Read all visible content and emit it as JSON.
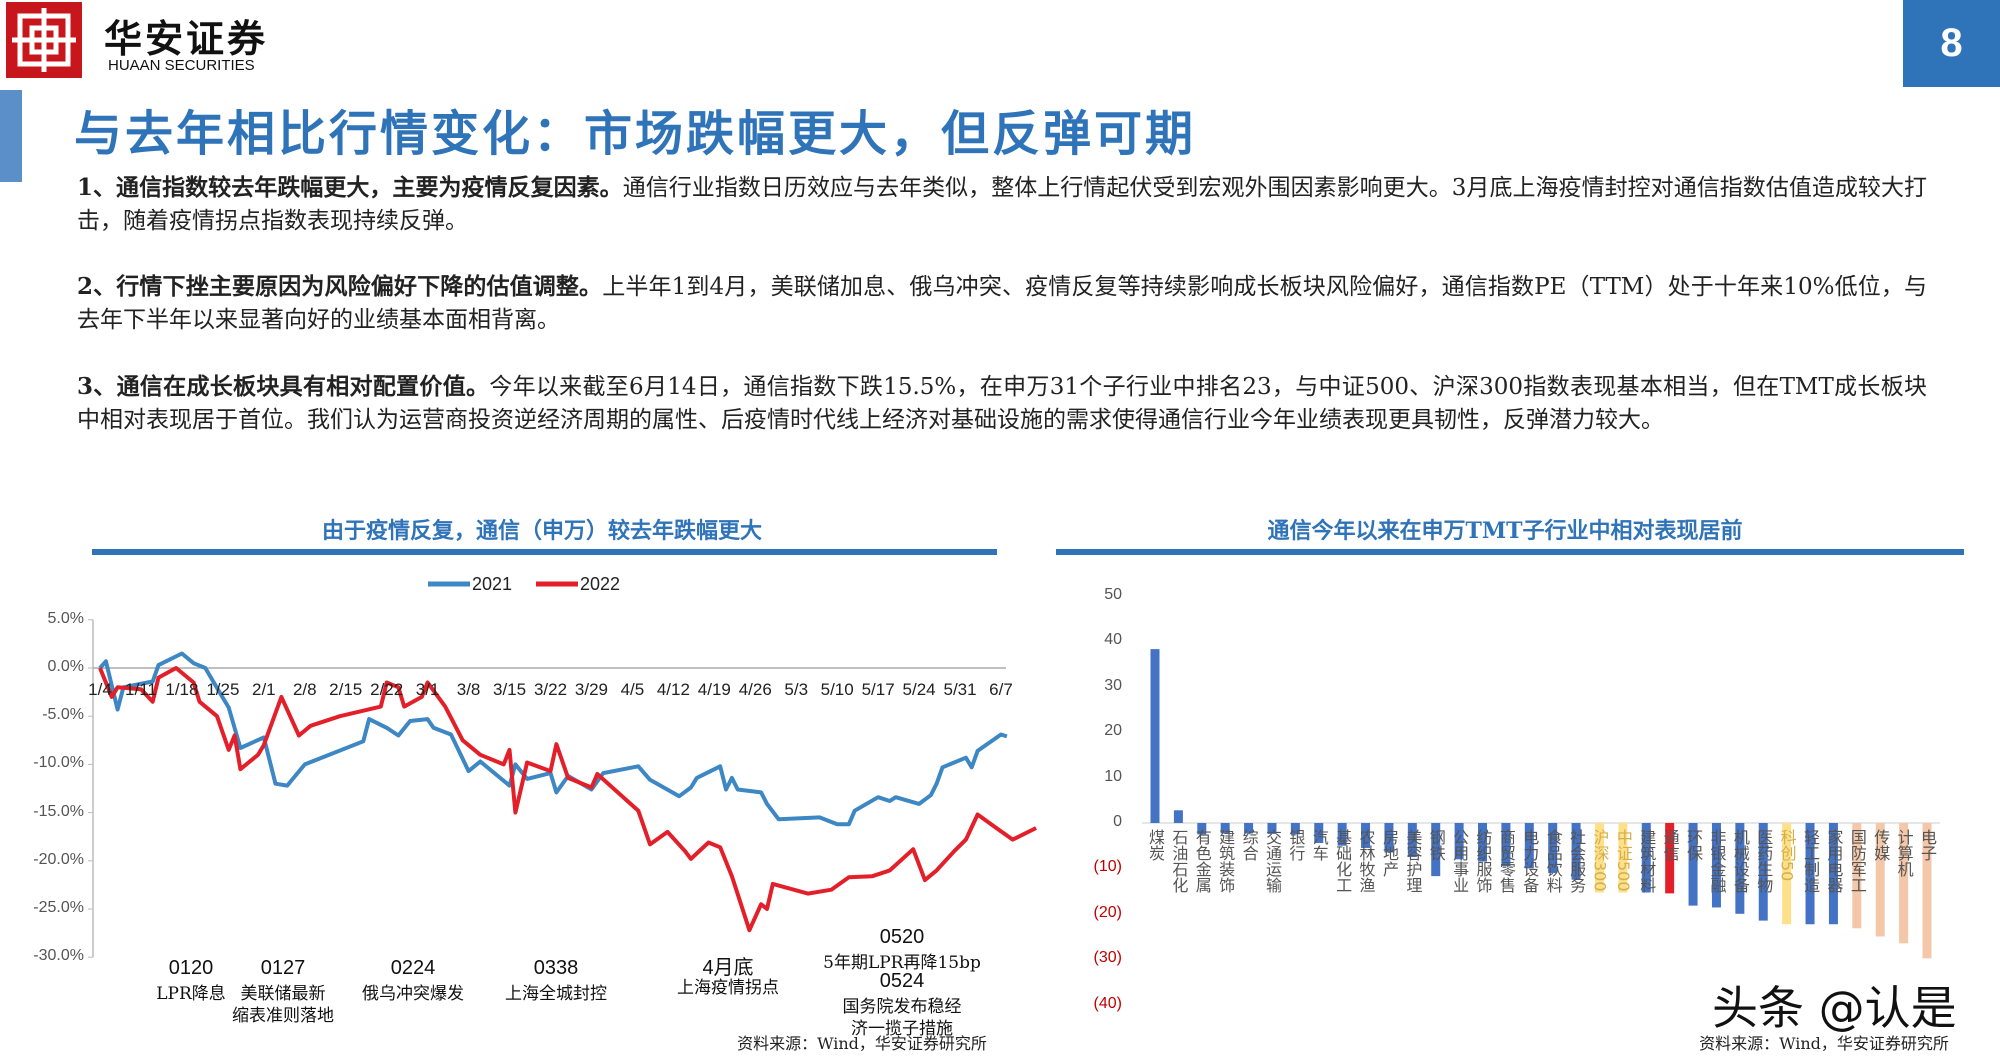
{
  "header": {
    "brand_cn": "华安证券",
    "brand_en": "HUAAN SECURITIES",
    "page_number": "8",
    "title": "与去年相比行情变化：市场跌幅更大，但反弹可期"
  },
  "paragraphs": [
    {
      "bold": "1、通信指数较去年跌幅更大，主要为疫情反复因素。",
      "text": "通信行业指数日历效应与去年类似，整体上行情起伏受到宏观外围因素影响更大。3月底上海疫情封控对通信指数估值造成较大打击，随着疫情拐点指数表现持续反弹。"
    },
    {
      "bold": "2、行情下挫主要原因为风险偏好下降的估值调整。",
      "text": "上半年1到4月，美联储加息、俄乌冲突、疫情反复等持续影响成长板块风险偏好，通信指数PE（TTM）处于十年来10%低位，与去年下半年以来显著向好的业绩基本面相背离。"
    },
    {
      "bold": "3、通信在成长板块具有相对配置价值。",
      "text": "今年以来截至6月14日，通信指数下跌15.5%，在申万31个子行业中排名23，与中证500、沪深300指数表现基本相当，但在TMT成长板块中相对表现居于首位。我们认为运营商投资逆经济周期的属性、后疫情时代线上经济对基础设施的需求使得通信行业今年业绩表现更具韧性，反弹潜力较大。"
    }
  ],
  "chart_data": [
    {
      "type": "line",
      "title": "由于疫情反复，通信（申万）较去年跌幅更大",
      "ylim": [
        -30,
        5
      ],
      "yticks": [
        "5.0%",
        "0.0%",
        "-5.0%",
        "-10.0%",
        "-15.0%",
        "-20.0%",
        "-25.0%",
        "-30.0%"
      ],
      "xticks": [
        "1/4",
        "1/11",
        "1/18",
        "1/25",
        "2/1",
        "2/8",
        "2/15",
        "2/22",
        "3/1",
        "3/8",
        "3/15",
        "3/22",
        "3/29",
        "4/5",
        "4/12",
        "4/19",
        "4/26",
        "5/3",
        "5/10",
        "5/17",
        "5/24",
        "5/31",
        "6/7"
      ],
      "legend_position": "top",
      "series": [
        {
          "name": "2021",
          "color": "#3c87c4",
          "points": [
            [
              "1/4",
              0
            ],
            [
              "1/5",
              0.7
            ],
            [
              "1/7",
              -4.3
            ],
            [
              "1/8",
              -2
            ],
            [
              "1/13",
              -1.4
            ],
            [
              "1/14",
              0.3
            ],
            [
              "1/18",
              1.5
            ],
            [
              "1/20",
              0.5
            ],
            [
              "1/22",
              0
            ],
            [
              "1/25",
              -3.1
            ],
            [
              "1/26",
              -4.1
            ],
            [
              "1/28",
              -8.3
            ],
            [
              "2/1",
              -7.2
            ],
            [
              "2/3",
              -12
            ],
            [
              "2/5",
              -12.2
            ],
            [
              "2/8",
              -10
            ],
            [
              "2/18",
              -7.6
            ],
            [
              "2/19",
              -5.3
            ],
            [
              "2/22",
              -6.2
            ],
            [
              "2/24",
              -7
            ],
            [
              "2/26",
              -5.5
            ],
            [
              "3/1",
              -5.3
            ],
            [
              "3/2",
              -6.2
            ],
            [
              "3/5",
              -6.9
            ],
            [
              "3/8",
              -10.7
            ],
            [
              "3/10",
              -9.7
            ],
            [
              "3/15",
              -12.2
            ],
            [
              "3/16",
              -10
            ],
            [
              "3/18",
              -11.5
            ],
            [
              "3/22",
              -10.9
            ],
            [
              "3/23",
              -12.9
            ],
            [
              "3/25",
              -11.2
            ],
            [
              "3/29",
              -12.6
            ],
            [
              "3/31",
              -10.9
            ],
            [
              "4/6",
              -10.2
            ],
            [
              "4/8",
              -11.6
            ],
            [
              "4/13",
              -13.3
            ],
            [
              "4/15",
              -12.4
            ],
            [
              "4/16",
              -11.4
            ],
            [
              "4/20",
              -10.2
            ],
            [
              "4/21",
              -12.6
            ],
            [
              "4/22",
              -11.4
            ],
            [
              "4/23",
              -12.6
            ],
            [
              "4/27",
              -12.9
            ],
            [
              "4/28",
              -14.1
            ],
            [
              "4/30",
              -15.7
            ],
            [
              "5/7",
              -15.5
            ],
            [
              "5/10",
              -16.2
            ],
            [
              "5/12",
              -16.2
            ],
            [
              "5/13",
              -14.8
            ],
            [
              "5/17",
              -13.4
            ],
            [
              "5/19",
              -13.8
            ],
            [
              "5/20",
              -13.4
            ],
            [
              "5/24",
              -14.1
            ],
            [
              "5/26",
              -13.2
            ],
            [
              "5/27",
              -12
            ],
            [
              "5/28",
              -10.3
            ],
            [
              "6/1",
              -9.3
            ],
            [
              "6/2",
              -10.3
            ],
            [
              "6/3",
              -8.6
            ],
            [
              "6/7",
              -6.9
            ],
            [
              "6/8",
              -7.1
            ]
          ]
        },
        {
          "name": "2022",
          "color": "#e3202a",
          "points": [
            [
              "1/4",
              0
            ],
            [
              "1/6",
              -3
            ],
            [
              "1/7",
              -2
            ],
            [
              "1/11",
              -2.2
            ],
            [
              "1/13",
              -3.5
            ],
            [
              "1/14",
              -1
            ],
            [
              "1/17",
              0
            ],
            [
              "1/20",
              -1.5
            ],
            [
              "1/21",
              -3.5
            ],
            [
              "1/24",
              -5
            ],
            [
              "1/26",
              -8.5
            ],
            [
              "1/27",
              -7
            ],
            [
              "1/28",
              -10.5
            ],
            [
              "1/31",
              -9
            ],
            [
              "2/1",
              -8
            ],
            [
              "2/4",
              -3
            ],
            [
              "2/7",
              -7
            ],
            [
              "2/9",
              -6
            ],
            [
              "2/14",
              -5
            ],
            [
              "2/21",
              -4
            ],
            [
              "2/22",
              -1.5
            ],
            [
              "2/24",
              -2
            ],
            [
              "2/25",
              -4
            ],
            [
              "2/28",
              -3
            ],
            [
              "3/1",
              -1.5
            ],
            [
              "3/4",
              -4
            ],
            [
              "3/7",
              -7.5
            ],
            [
              "3/10",
              -9
            ],
            [
              "3/14",
              -10
            ],
            [
              "3/15",
              -8.5
            ],
            [
              "3/16",
              -15
            ],
            [
              "3/18",
              -9.8
            ],
            [
              "3/22",
              -10.7
            ],
            [
              "3/23",
              -7.9
            ],
            [
              "3/25",
              -11.4
            ],
            [
              "3/29",
              -12.4
            ],
            [
              "3/30",
              -11
            ],
            [
              "4/6",
              -14.8
            ],
            [
              "4/8",
              -18.3
            ],
            [
              "4/11",
              -17
            ],
            [
              "4/14",
              -19
            ],
            [
              "4/15",
              -19.8
            ],
            [
              "4/18",
              -18.1
            ],
            [
              "4/20",
              -18.6
            ],
            [
              "4/22",
              -21.6
            ],
            [
              "4/25",
              -27.2
            ],
            [
              "4/27",
              -24.5
            ],
            [
              "4/28",
              -25
            ],
            [
              "4/29",
              -22.4
            ],
            [
              "5/5",
              -23.4
            ],
            [
              "5/9",
              -23
            ],
            [
              "5/12",
              -21.7
            ],
            [
              "5/16",
              -21.6
            ],
            [
              "5/19",
              -21
            ],
            [
              "5/23",
              -18.8
            ],
            [
              "5/25",
              -22
            ],
            [
              "5/27",
              -21
            ],
            [
              "5/30",
              -19
            ],
            [
              "6/1",
              -17.8
            ],
            [
              "6/3",
              -15.2
            ],
            [
              "6/6",
              -16.5
            ],
            [
              "6/9",
              -17.8
            ],
            [
              "6/13",
              -16.6
            ]
          ]
        }
      ],
      "annotations": [
        {
          "lines": [
            "0120",
            "LPR降息"
          ]
        },
        {
          "lines": [
            "0127",
            "美联储最新",
            "缩表准则落地"
          ]
        },
        {
          "lines": [
            "0224",
            "俄乌冲突爆发"
          ]
        },
        {
          "lines": [
            "0338",
            "上海全城封控"
          ]
        },
        {
          "lines": [
            "4月底",
            "上海疫情拐点"
          ]
        },
        {
          "lines": [
            "0520",
            "5年期LPR再降15bp",
            "0524",
            "国务院发布稳经",
            "济一揽子措施"
          ]
        }
      ],
      "source": "资料来源：Wind，华安证券研究所"
    },
    {
      "type": "bar",
      "title": "通信今年以来在申万TMT子行业中相对表现居前",
      "ylim": [
        -40,
        50
      ],
      "yticks": [
        "50",
        "40",
        "30",
        "20",
        "10",
        "0",
        "(10)",
        "(20)",
        "(30)",
        "(40)"
      ],
      "colors": {
        "industry": "#4472c4",
        "index": "#ffe08a",
        "highlight": "#e3202a",
        "tmt": "#f4c7a8",
        "negative_tick": "#c00000"
      },
      "categories": [
        "煤炭",
        "石油石化",
        "有色金属",
        "建筑装饰",
        "综合",
        "交通运输",
        "银行",
        "汽车",
        "基础化工",
        "农林牧渔",
        "房地产",
        "美容护理",
        "钢铁",
        "公用事业",
        "纺织服饰",
        "商贸零售",
        "电力设备",
        "食品饮料",
        "社会服务",
        "沪深300",
        "中证500",
        "建筑材料",
        "通信",
        "环保",
        "非银金融",
        "机械设备",
        "医药生物",
        "科创50",
        "轻工制造",
        "家用电器",
        "国防军工",
        "传媒",
        "计算机",
        "电子"
      ],
      "values": [
        38.3,
        2.8,
        -2.5,
        -2.3,
        -2.3,
        -2.4,
        -2.5,
        -4.4,
        -5,
        -5.5,
        -6.5,
        -7.5,
        -11.7,
        -8,
        -8.5,
        -9.5,
        -10,
        -11,
        -12.5,
        -15.3,
        -15.3,
        -15.3,
        -15.5,
        -18.2,
        -18.6,
        -20,
        -21.5,
        -22.3,
        -22.3,
        -22.3,
        -23.2,
        -25,
        -26.5,
        -29.8
      ],
      "groups": [
        "industry",
        "industry",
        "industry",
        "industry",
        "industry",
        "industry",
        "industry",
        "industry",
        "industry",
        "industry",
        "industry",
        "industry",
        "industry",
        "industry",
        "industry",
        "industry",
        "industry",
        "industry",
        "industry",
        "index",
        "index",
        "industry",
        "highlight",
        "industry",
        "industry",
        "industry",
        "industry",
        "index",
        "industry",
        "industry",
        "tmt",
        "tmt",
        "tmt",
        "tmt"
      ],
      "source": "资料来源：Wind，华安证券研究所"
    }
  ],
  "watermark": "头条 @认是"
}
